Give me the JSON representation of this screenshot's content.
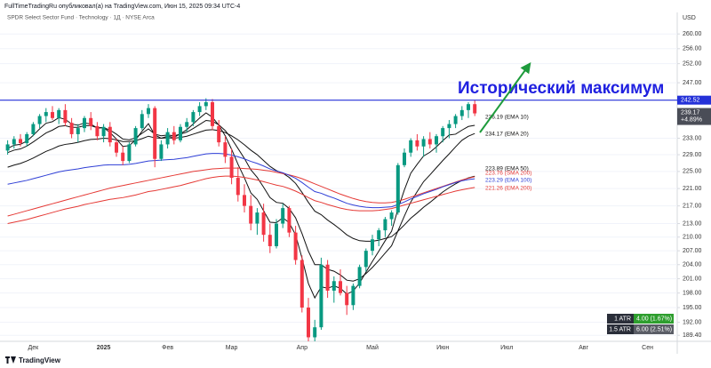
{
  "chart_data": {
    "type": "candlestick",
    "title": "FullTimeTradingRu опубликовал(а) на TradingView.com, Июн 15, 2025 09:34 UTC-4",
    "subtitle": "SPDR Select Sector Fund · Technology · 1Д · NYSE Arca",
    "currency": "USD",
    "annotation": "Исторический максимум",
    "brand": "TradingView",
    "log_scale": true,
    "grid": true,
    "up_color": "#089981",
    "down_color": "#f23645",
    "level": 242.52,
    "level_color": "#2431d8",
    "price_change": "+4.89%",
    "ylim": [
      188.2,
      262
    ],
    "yticks": [
      {
        "value": 260,
        "label": "260.00"
      },
      {
        "value": 256,
        "label": "256.00"
      },
      {
        "value": 252,
        "label": "252.00"
      },
      {
        "value": 247,
        "label": "247.00"
      },
      {
        "value": 233,
        "label": "233.00"
      },
      {
        "value": 229,
        "label": "229.00"
      },
      {
        "value": 225,
        "label": "225.00"
      },
      {
        "value": 221,
        "label": "221.00"
      },
      {
        "value": 217,
        "label": "217.00"
      },
      {
        "value": 213,
        "label": "213.00"
      },
      {
        "value": 210,
        "label": "210.00"
      },
      {
        "value": 207,
        "label": "207.00"
      },
      {
        "value": 204,
        "label": "204.00"
      },
      {
        "value": 201,
        "label": "201.00"
      },
      {
        "value": 198,
        "label": "198.00"
      },
      {
        "value": 195,
        "label": "195.00"
      },
      {
        "value": 192,
        "label": "192.00"
      },
      {
        "value": 189.4,
        "label": "189.40"
      }
    ],
    "categories": [
      null,
      null,
      null,
      null,
      "Дек",
      null,
      null,
      null,
      null,
      null,
      null,
      null,
      null,
      null,
      null,
      "2025",
      null,
      null,
      null,
      null,
      null,
      null,
      null,
      null,
      null,
      "Фев",
      null,
      null,
      null,
      null,
      null,
      null,
      null,
      null,
      null,
      "Мар",
      null,
      null,
      null,
      null,
      null,
      null,
      null,
      null,
      null,
      null,
      "Апр",
      null,
      null,
      null,
      null,
      null,
      null,
      null,
      null,
      null,
      null,
      "Май",
      null,
      null,
      null,
      null,
      null,
      null,
      null,
      null,
      null,
      null,
      "Июн",
      null,
      null,
      null,
      null,
      null,
      null,
      null,
      null,
      null,
      "Июл",
      null,
      null,
      null,
      null,
      null,
      null,
      null,
      null,
      null,
      null,
      null,
      "Авг",
      null,
      null,
      null,
      null,
      null,
      null,
      null,
      null,
      null,
      "Сен",
      null
    ],
    "open": [
      230.0,
      231.5,
      232.8,
      231.8,
      234.0,
      236.5,
      238.5,
      239.5,
      238.0,
      240.0,
      236.8,
      234.0,
      235.5,
      238.0,
      236.0,
      233.5,
      235.8,
      232.0,
      229.5,
      227.5,
      231.5,
      235.5,
      239.0,
      240.5,
      228.0,
      231.5,
      234.5,
      232.5,
      235.8,
      237.0,
      239.5,
      241.0,
      242.0,
      236.0,
      232.0,
      228.5,
      223.5,
      219.5,
      217.0,
      213.0,
      215.5,
      210.5,
      208.0,
      213.0,
      216.5,
      211.0,
      205.0,
      195.0,
      189.0,
      191.0,
      204.0,
      198.5,
      200.5,
      198.0,
      195.5,
      199.5,
      203.5,
      207.0,
      209.5,
      211.5,
      214.0,
      215.5,
      226.5,
      229.5,
      232.5,
      231.0,
      232.8,
      231.5,
      233.5,
      235.5,
      236.5,
      238.5,
      240.0,
      241.5,
      null,
      null,
      null,
      null,
      null,
      null,
      null,
      null,
      null,
      null,
      null,
      null,
      null,
      null,
      null,
      null,
      null,
      null,
      null,
      null,
      null,
      null,
      null,
      null,
      null,
      null,
      null,
      null
    ],
    "high": [
      232.5,
      233.5,
      234.0,
      234.5,
      237.0,
      239.0,
      240.5,
      241.0,
      240.5,
      241.5,
      238.0,
      236.5,
      238.5,
      239.5,
      237.0,
      236.5,
      237.0,
      233.0,
      231.0,
      232.0,
      236.0,
      240.0,
      241.5,
      241.0,
      232.5,
      235.5,
      236.0,
      236.5,
      238.0,
      240.0,
      242.0,
      243.0,
      242.8,
      237.5,
      233.5,
      230.5,
      226.0,
      222.0,
      219.5,
      216.5,
      217.5,
      213.0,
      214.0,
      217.5,
      217.0,
      212.5,
      206.0,
      197.0,
      192.5,
      205.5,
      205.0,
      201.5,
      203.0,
      199.5,
      200.0,
      204.0,
      207.5,
      210.5,
      212.0,
      214.5,
      216.0,
      227.0,
      230.5,
      233.0,
      234.0,
      233.5,
      234.5,
      234.0,
      236.0,
      237.5,
      239.0,
      241.0,
      242.0,
      242.5,
      null,
      null,
      null,
      null,
      null,
      null,
      null,
      null,
      null,
      null,
      null,
      null,
      null,
      null,
      null,
      null,
      null,
      null,
      null,
      null,
      null,
      null,
      null,
      null,
      null,
      null,
      null,
      null
    ],
    "low": [
      229.0,
      230.5,
      231.0,
      231.0,
      233.5,
      235.5,
      237.0,
      237.5,
      236.5,
      236.0,
      233.0,
      232.0,
      234.5,
      235.0,
      232.5,
      232.0,
      231.0,
      228.5,
      226.5,
      227.0,
      231.0,
      235.0,
      238.0,
      226.0,
      227.5,
      230.5,
      231.5,
      232.0,
      234.5,
      236.0,
      238.5,
      240.0,
      235.0,
      231.0,
      227.0,
      222.0,
      218.0,
      215.5,
      211.5,
      210.5,
      209.0,
      206.5,
      207.5,
      212.0,
      210.0,
      204.0,
      194.0,
      186.0,
      186.5,
      190.5,
      197.0,
      196.0,
      197.5,
      193.5,
      194.5,
      199.0,
      202.5,
      206.0,
      208.0,
      210.0,
      212.5,
      215.0,
      226.0,
      228.5,
      230.0,
      228.5,
      230.5,
      229.5,
      232.0,
      233.0,
      235.5,
      237.5,
      238.0,
      238.5,
      null,
      null,
      null,
      null,
      null,
      null,
      null,
      null,
      null,
      null,
      null,
      null,
      null,
      null,
      null,
      null,
      null,
      null,
      null,
      null,
      null,
      null,
      null,
      null,
      null,
      null,
      null,
      null
    ],
    "close": [
      231.5,
      232.8,
      231.8,
      234.0,
      236.5,
      238.5,
      239.5,
      238.0,
      240.0,
      236.8,
      234.0,
      235.5,
      238.0,
      236.0,
      233.5,
      235.8,
      232.0,
      229.5,
      227.5,
      231.5,
      235.5,
      239.0,
      240.5,
      228.0,
      231.5,
      234.5,
      232.5,
      235.8,
      237.0,
      239.5,
      241.0,
      242.0,
      236.0,
      232.0,
      228.5,
      223.5,
      219.5,
      217.0,
      213.0,
      215.5,
      210.5,
      208.0,
      213.0,
      216.5,
      211.0,
      205.0,
      195.0,
      189.0,
      191.0,
      204.0,
      198.5,
      200.5,
      198.0,
      195.5,
      199.5,
      203.5,
      207.0,
      209.5,
      211.5,
      214.0,
      215.5,
      226.5,
      229.5,
      232.5,
      231.0,
      232.8,
      231.5,
      233.5,
      235.5,
      236.5,
      238.5,
      240.0,
      241.5,
      239.17,
      null,
      null,
      null,
      null,
      null,
      null,
      null,
      null,
      null,
      null,
      null,
      null,
      null,
      null,
      null,
      null,
      null,
      null,
      null,
      null,
      null,
      null,
      null,
      null,
      null,
      null,
      null,
      null
    ],
    "series": [
      {
        "label": "236.19 (EMA 10)",
        "color": "#111111",
        "values": [
          230.5,
          231.3,
          231.5,
          232.3,
          233.7,
          235.3,
          236.7,
          237.1,
          238.1,
          237.7,
          236.5,
          236.2,
          236.8,
          236.5,
          235.5,
          235.6,
          234.4,
          232.8,
          231.0,
          231.2,
          232.6,
          234.7,
          236.6,
          233.8,
          233.0,
          233.5,
          233.2,
          234.1,
          235.1,
          236.5,
          238.0,
          239.3,
          238.2,
          236.2,
          233.6,
          230.3,
          226.7,
          223.5,
          220.0,
          218.5,
          215.9,
          213.3,
          213.2,
          214.3,
          213.2,
          210.5,
          205.4,
          200.0,
          197.0,
          199.3,
          199.0,
          199.5,
          199.0,
          197.8,
          198.4,
          200.1,
          202.4,
          204.7,
          206.9,
          209.2,
          211.3,
          216.3,
          220.7,
          224.6,
          226.7,
          228.7,
          229.6,
          230.9,
          232.4,
          233.8,
          234.0,
          235.0,
          235.9,
          236.19,
          null,
          null,
          null,
          null,
          null,
          null,
          null,
          null,
          null,
          null,
          null,
          null,
          null,
          null,
          null,
          null,
          null,
          null,
          null,
          null,
          null,
          null,
          null,
          null,
          null,
          null,
          null,
          null
        ]
      },
      {
        "label": "234.17 (EMA 20)",
        "color": "#111111",
        "values": [
          229.5,
          230.1,
          230.4,
          231.1,
          232.1,
          233.2,
          234.3,
          235.0,
          235.9,
          236.1,
          235.7,
          235.7,
          236.1,
          236.1,
          235.6,
          235.6,
          235.0,
          234.0,
          232.8,
          232.6,
          233.1,
          234.2,
          235.3,
          234.0,
          233.6,
          233.8,
          233.6,
          234.0,
          234.5,
          235.4,
          236.4,
          237.4,
          237.2,
          236.3,
          234.9,
          232.9,
          230.5,
          228.1,
          225.4,
          223.6,
          221.3,
          218.9,
          217.8,
          217.6,
          216.4,
          214.3,
          210.8,
          206.9,
          204.0,
          204.0,
          203.0,
          202.6,
          201.8,
          200.7,
          200.5,
          201.0,
          202.1,
          203.4,
          204.9,
          206.5,
          208.1,
          211.4,
          214.7,
          217.9,
          220.3,
          222.6,
          224.2,
          225.9,
          227.6,
          229.2,
          230.9,
          232.5,
          233.5,
          234.17,
          null,
          null,
          null,
          null,
          null,
          null,
          null,
          null,
          null,
          null,
          null,
          null,
          null,
          null,
          null,
          null,
          null,
          null,
          null,
          null,
          null,
          null,
          null,
          null,
          null,
          null,
          null,
          null
        ]
      },
      {
        "label": "223.89 (EMA 50)",
        "color": "#111111",
        "values": [
          226.0,
          226.5,
          226.9,
          227.5,
          228.2,
          229.0,
          229.8,
          230.4,
          231.1,
          231.5,
          231.7,
          232.0,
          232.4,
          232.7,
          232.8,
          233.0,
          232.9,
          232.6,
          232.2,
          232.2,
          232.4,
          232.9,
          233.5,
          233.1,
          233.0,
          233.1,
          233.0,
          233.2,
          233.5,
          234.0,
          234.5,
          235.0,
          235.1,
          234.9,
          234.4,
          233.6,
          232.6,
          231.4,
          230.1,
          229.0,
          227.6,
          226.2,
          225.2,
          224.6,
          223.6,
          222.2,
          220.1,
          217.8,
          215.8,
          215.0,
          213.8,
          212.8,
          211.7,
          210.5,
          209.7,
          209.2,
          209.1,
          209.1,
          209.3,
          209.7,
          210.1,
          211.3,
          212.7,
          214.2,
          215.4,
          216.7,
          217.8,
          219.0,
          220.2,
          221.2,
          222.1,
          222.9,
          223.5,
          223.89,
          null,
          null,
          null,
          null,
          null,
          null,
          null,
          null,
          null,
          null,
          null,
          null,
          null,
          null,
          null,
          null,
          null,
          null,
          null,
          null,
          null,
          null,
          null,
          null,
          null,
          null,
          null,
          null
        ]
      },
      {
        "label": "223.76 (SMA 200)",
        "color": "#e53935",
        "values": [
          214.7,
          215.1,
          215.5,
          215.9,
          216.3,
          216.7,
          217.1,
          217.5,
          217.9,
          218.3,
          218.7,
          219.1,
          219.5,
          219.9,
          220.3,
          220.7,
          221.1,
          221.4,
          221.7,
          222.0,
          222.3,
          222.6,
          222.9,
          223.2,
          223.5,
          223.8,
          224.1,
          224.4,
          224.7,
          225.0,
          225.2,
          225.4,
          225.6,
          225.7,
          225.8,
          225.8,
          225.8,
          225.7,
          225.6,
          225.5,
          225.3,
          225.1,
          224.8,
          224.5,
          224.2,
          223.8,
          223.3,
          222.7,
          222.1,
          221.5,
          220.9,
          220.3,
          219.7,
          219.2,
          218.7,
          218.3,
          218.0,
          217.8,
          217.7,
          217.7,
          217.8,
          218.1,
          218.5,
          219.0,
          219.5,
          220.0,
          220.5,
          221.0,
          221.5,
          222.0,
          222.5,
          223.0,
          223.4,
          223.76,
          null,
          null,
          null,
          null,
          null,
          null,
          null,
          null,
          null,
          null,
          null,
          null,
          null,
          null,
          null,
          null,
          null,
          null,
          null,
          null,
          null,
          null,
          null,
          null,
          null,
          null,
          null,
          null
        ]
      },
      {
        "label": "223.29 (EMA 100)",
        "color": "#2f3fd6",
        "values": [
          222.0,
          222.3,
          222.6,
          222.9,
          223.3,
          223.7,
          224.1,
          224.5,
          224.9,
          225.2,
          225.4,
          225.6,
          225.9,
          226.1,
          226.3,
          226.5,
          226.6,
          226.6,
          226.6,
          226.7,
          226.9,
          227.2,
          227.5,
          227.6,
          227.7,
          227.8,
          227.9,
          228.1,
          228.3,
          228.6,
          228.9,
          229.2,
          229.3,
          229.3,
          229.2,
          228.9,
          228.5,
          228.0,
          227.4,
          226.9,
          226.3,
          225.6,
          225.1,
          224.7,
          224.1,
          223.4,
          222.4,
          221.3,
          220.3,
          219.9,
          219.3,
          218.8,
          218.2,
          217.6,
          217.2,
          216.9,
          216.7,
          216.6,
          216.6,
          216.7,
          216.8,
          217.3,
          217.9,
          218.6,
          219.2,
          219.8,
          220.3,
          220.8,
          221.4,
          221.9,
          222.4,
          222.8,
          223.1,
          223.29,
          null,
          null,
          null,
          null,
          null,
          null,
          null,
          null,
          null,
          null,
          null,
          null,
          null,
          null,
          null,
          null,
          null,
          null,
          null,
          null,
          null,
          null,
          null,
          null,
          null,
          null,
          null,
          null
        ]
      },
      {
        "label": "221.26 (EMA 200)",
        "color": "#e53935",
        "values": [
          213.0,
          213.3,
          213.6,
          213.9,
          214.3,
          214.7,
          215.1,
          215.5,
          215.9,
          216.3,
          216.6,
          216.9,
          217.3,
          217.6,
          217.9,
          218.2,
          218.5,
          218.7,
          218.9,
          219.2,
          219.5,
          219.9,
          220.3,
          220.5,
          220.8,
          221.1,
          221.4,
          221.7,
          222.1,
          222.5,
          222.9,
          223.3,
          223.6,
          223.8,
          223.9,
          223.9,
          223.8,
          223.6,
          223.3,
          223.0,
          222.6,
          222.2,
          221.8,
          221.5,
          221.0,
          220.4,
          219.7,
          218.9,
          218.2,
          217.8,
          217.3,
          216.9,
          216.5,
          216.2,
          216.0,
          215.9,
          215.9,
          215.9,
          216.0,
          216.2,
          216.4,
          216.8,
          217.2,
          217.6,
          218.0,
          218.4,
          218.8,
          219.2,
          219.6,
          220.0,
          220.4,
          220.7,
          221.0,
          221.26,
          null,
          null,
          null,
          null,
          null,
          null,
          null,
          null,
          null,
          null,
          null,
          null,
          null,
          null,
          null,
          null,
          null,
          null,
          null,
          null,
          null,
          null,
          null,
          null,
          null,
          null,
          null,
          null
        ]
      }
    ],
    "atr": [
      {
        "name": "1 ATR",
        "value": "4.00 (1.67%)",
        "color": "#2e9e2e"
      },
      {
        "name": "1.5 ATR",
        "value": "6.00 (2.51%)",
        "color": "#5a5d66"
      }
    ]
  }
}
